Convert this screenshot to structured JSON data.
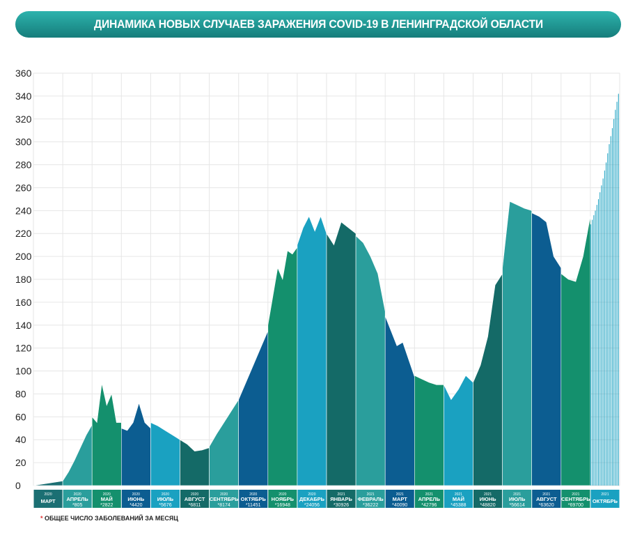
{
  "chart_data": {
    "type": "area",
    "title": "ДИНАМИКА НОВЫХ СЛУЧАЕВ ЗАРАЖЕНИЯ COVID-19 В ЛЕНИНГРАДСКОЙ ОБЛАСТИ",
    "ylim": [
      0,
      360
    ],
    "yticks": [
      0,
      20,
      40,
      60,
      80,
      100,
      120,
      140,
      160,
      180,
      200,
      220,
      240,
      260,
      280,
      300,
      320,
      340,
      360
    ],
    "grid": true,
    "footnote_star": "*",
    "footnote": "ОБЩЕЕ ЧИСЛО ЗАБОЛЕВАНИЙ ЗА МЕСЯЦ",
    "months": [
      {
        "year": "2020",
        "name": "МАРТ",
        "total": "",
        "color": "#1b6f73",
        "points": [
          0,
          1,
          2,
          3,
          4
        ]
      },
      {
        "year": "2020",
        "name": "АПРЕЛЬ",
        "total": "*805",
        "color": "#2a9e9c",
        "points": [
          4,
          12,
          22,
          33,
          44,
          53
        ]
      },
      {
        "year": "2020",
        "name": "МАЙ",
        "total": "*2822",
        "color": "#14906d",
        "points": [
          60,
          55,
          89,
          70,
          80,
          55,
          55
        ]
      },
      {
        "year": "2020",
        "name": "ИЮНЬ",
        "total": "*4420",
        "color": "#0c5d91",
        "points": [
          50,
          48,
          55,
          72,
          55,
          50
        ]
      },
      {
        "year": "2020",
        "name": "ИЮЛЬ",
        "total": "*5676",
        "color": "#1aa1c1",
        "points": [
          55,
          52,
          48,
          44,
          40
        ]
      },
      {
        "year": "2020",
        "name": "АВГУСТ",
        "total": "*6811",
        "color": "#146a67",
        "points": [
          40,
          36,
          30,
          31,
          33
        ]
      },
      {
        "year": "2020",
        "name": "СЕНТЯБРЬ",
        "total": "*8174",
        "color": "#2a9e9c",
        "points": [
          34,
          45,
          55,
          65,
          75
        ]
      },
      {
        "year": "2020",
        "name": "ОКТЯБРЬ",
        "total": "*11451",
        "color": "#0c5d91",
        "points": [
          75,
          90,
          105,
          120,
          135
        ]
      },
      {
        "year": "2020",
        "name": "НОЯБРЬ",
        "total": "*16948",
        "color": "#14906d",
        "points": [
          140,
          165,
          190,
          180,
          205,
          202,
          208
        ]
      },
      {
        "year": "2020",
        "name": "ДЕКАБРЬ",
        "total": "*24056",
        "color": "#1aa1c1",
        "points": [
          210,
          225,
          235,
          222,
          235,
          220
        ]
      },
      {
        "year": "2021",
        "name": "ЯНВАРЬ",
        "total": "*30926",
        "color": "#146a67",
        "points": [
          220,
          210,
          230,
          225,
          220
        ]
      },
      {
        "year": "2021",
        "name": "ФЕВРАЛЬ",
        "total": "*36222",
        "color": "#2a9e9c",
        "points": [
          218,
          212,
          200,
          185,
          152
        ]
      },
      {
        "year": "2021",
        "name": "МАРТ",
        "total": "*40090",
        "color": "#0c5d91",
        "points": [
          148,
          135,
          122,
          125,
          110,
          95
        ]
      },
      {
        "year": "2021",
        "name": "АПРЕЛЬ",
        "total": "*42796",
        "color": "#14906d",
        "points": [
          96,
          93,
          90,
          88,
          88
        ]
      },
      {
        "year": "2021",
        "name": "МАЙ",
        "total": "*45388",
        "color": "#1aa1c1",
        "points": [
          88,
          75,
          84,
          96,
          90
        ]
      },
      {
        "year": "2021",
        "name": "ИЮНЬ",
        "total": "*48820",
        "color": "#146a67",
        "points": [
          90,
          105,
          130,
          175,
          185
        ]
      },
      {
        "year": "2021",
        "name": "ИЮЛЬ",
        "total": "*56614",
        "color": "#2a9e9c",
        "points": [
          190,
          248,
          245,
          242,
          240
        ]
      },
      {
        "year": "2021",
        "name": "АВГУСТ",
        "total": "*63620",
        "color": "#0c5d91",
        "points": [
          238,
          235,
          230,
          200,
          190
        ]
      },
      {
        "year": "2021",
        "name": "СЕНТЯБРЬ",
        "total": "*69700",
        "color": "#14906d",
        "points": [
          185,
          180,
          178,
          200,
          235
        ]
      },
      {
        "year": "2021",
        "name": "ОКТЯБРЬ",
        "total": "",
        "color": "#1aa1c1",
        "striped": true,
        "points": [
          228,
          232,
          236,
          240,
          245,
          250,
          256,
          262,
          268,
          275,
          282,
          290,
          298,
          305,
          312,
          320,
          328,
          335,
          342
        ]
      }
    ]
  }
}
